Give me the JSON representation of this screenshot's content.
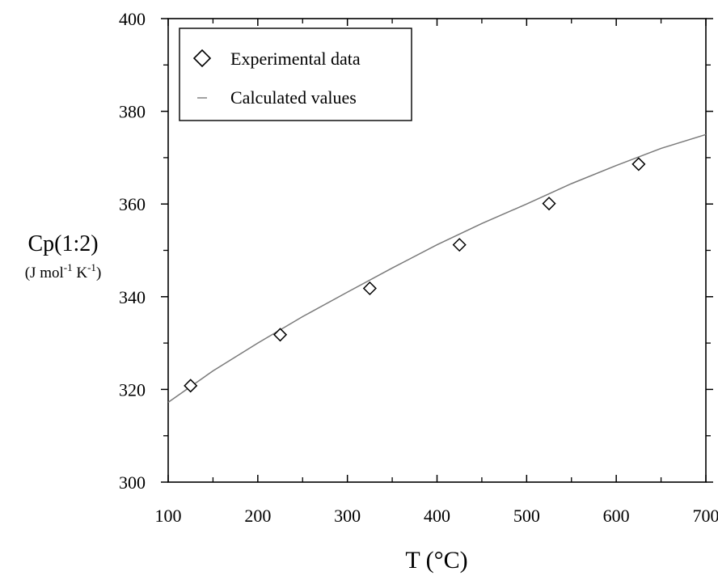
{
  "chart_data": {
    "type": "scatter",
    "title": "",
    "xlabel": "T (°C)",
    "ylabel": "Cp(1:2)",
    "ylabel_unit": {
      "open": "(J mol",
      "sup1": "-1",
      "mid": " K",
      "sup2": "-1",
      "close": ")"
    },
    "xlim": [
      100,
      700
    ],
    "ylim": [
      300,
      400
    ],
    "xticks": [
      100,
      200,
      300,
      400,
      500,
      600,
      700
    ],
    "yticks": [
      300,
      320,
      340,
      360,
      380,
      400
    ],
    "grid": false,
    "legend_position": "top-left",
    "series": [
      {
        "name": "Experimental data",
        "marker": "diamond",
        "x": [
          125,
          225,
          325,
          425,
          525,
          625
        ],
        "y": [
          320.8,
          331.8,
          341.8,
          351.2,
          360.1,
          368.6
        ]
      },
      {
        "name": "Calculated values",
        "line": true,
        "color": "#7a7a7a",
        "x": [
          100,
          150,
          200,
          250,
          300,
          350,
          400,
          450,
          500,
          550,
          600,
          650,
          700
        ],
        "y": [
          317.2,
          324.0,
          330.0,
          335.7,
          341.0,
          346.2,
          351.2,
          355.8,
          360.0,
          364.4,
          368.3,
          372.0,
          375.0
        ]
      }
    ]
  }
}
